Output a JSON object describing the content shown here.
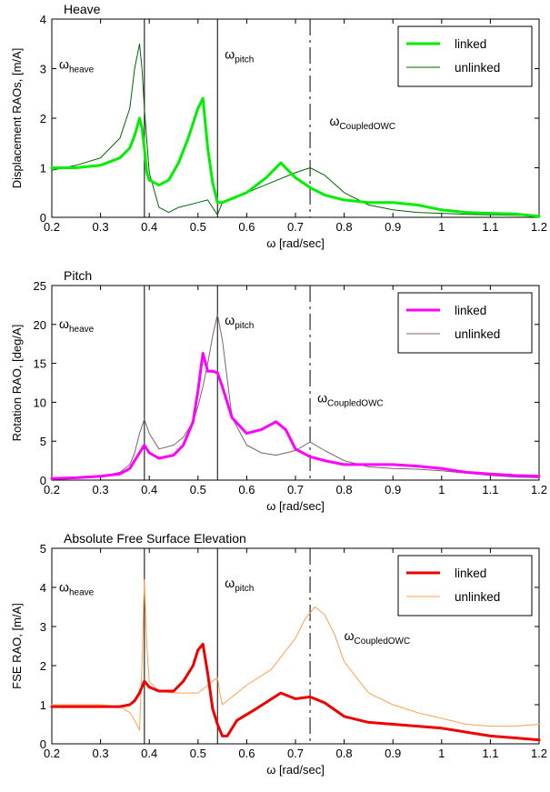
{
  "chart_data": [
    {
      "type": "line",
      "title": "Heave",
      "xlabel": "ω [rad/sec]",
      "ylabel": "Displacement RAOs, [m/A]",
      "xlim": [
        0.2,
        1.2
      ],
      "ylim": [
        0,
        4
      ],
      "xticks": [
        "0.2",
        "0.3",
        "0.4",
        "0.5",
        "0.6",
        "0.7",
        "0.8",
        "0.9",
        "1",
        "1.1",
        "1.2"
      ],
      "yticks": [
        "0",
        "1",
        "2",
        "3",
        "4"
      ],
      "legend": "top-right",
      "annotations": [
        {
          "base": "ω",
          "sub": "heave",
          "x": 0.215,
          "y": 3.0
        },
        {
          "base": "ω",
          "sub": "pitch",
          "x": 0.555,
          "y": 3.2
        },
        {
          "base": "ω",
          "sub": "CoupledOWC",
          "x": 0.77,
          "y": 1.85
        }
      ],
      "vlines": [
        {
          "x": 0.39,
          "style": "solid"
        },
        {
          "x": 0.54,
          "style": "solid"
        },
        {
          "x": 0.73,
          "style": "dashdot"
        }
      ],
      "series": [
        {
          "name": "linked",
          "color": "#00ee00",
          "width": 3,
          "x": [
            0.2,
            0.25,
            0.3,
            0.34,
            0.36,
            0.37,
            0.38,
            0.385,
            0.39,
            0.395,
            0.4,
            0.42,
            0.44,
            0.46,
            0.48,
            0.5,
            0.51,
            0.52,
            0.53,
            0.54,
            0.55,
            0.6,
            0.64,
            0.67,
            0.7,
            0.73,
            0.76,
            0.8,
            0.85,
            0.9,
            0.95,
            1.0,
            1.05,
            1.1,
            1.15,
            1.2
          ],
          "y": [
            1.0,
            1.0,
            1.05,
            1.2,
            1.4,
            1.65,
            2.0,
            1.8,
            1.4,
            0.9,
            0.75,
            0.65,
            0.75,
            1.1,
            1.6,
            2.2,
            2.4,
            1.4,
            0.7,
            0.3,
            0.3,
            0.5,
            0.8,
            1.1,
            0.8,
            0.6,
            0.45,
            0.35,
            0.3,
            0.3,
            0.25,
            0.15,
            0.1,
            0.08,
            0.07,
            0.02
          ]
        },
        {
          "name": "unlinked",
          "color": "#006600",
          "width": 1,
          "x": [
            0.2,
            0.25,
            0.3,
            0.34,
            0.36,
            0.37,
            0.38,
            0.385,
            0.39,
            0.4,
            0.42,
            0.44,
            0.46,
            0.5,
            0.52,
            0.53,
            0.54,
            0.55,
            0.6,
            0.65,
            0.7,
            0.73,
            0.76,
            0.8,
            0.85,
            0.9,
            0.95,
            1.0,
            1.05,
            1.1,
            1.15,
            1.2
          ],
          "y": [
            0.95,
            1.05,
            1.2,
            1.6,
            2.2,
            3.0,
            3.5,
            3.0,
            2.2,
            0.9,
            0.2,
            0.1,
            0.2,
            0.3,
            0.35,
            0.2,
            0.05,
            0.3,
            0.5,
            0.7,
            0.9,
            1.0,
            0.85,
            0.5,
            0.25,
            0.15,
            0.1,
            0.08,
            0.06,
            0.05,
            0.04,
            0.03
          ]
        }
      ]
    },
    {
      "type": "line",
      "title": "Pitch",
      "xlabel": "ω [rad/sec]",
      "ylabel": "Rotation RAO, [deg/A]",
      "xlim": [
        0.2,
        1.2
      ],
      "ylim": [
        0,
        25
      ],
      "xticks": [
        "0.2",
        "0.3",
        "0.4",
        "0.5",
        "0.6",
        "0.7",
        "0.8",
        "0.9",
        "1",
        "1.1",
        "1.2"
      ],
      "yticks": [
        "0",
        "5",
        "10",
        "15",
        "20",
        "25"
      ],
      "legend": "top-right",
      "annotations": [
        {
          "base": "ω",
          "sub": "heave",
          "x": 0.215,
          "y": 19.5
        },
        {
          "base": "ω",
          "sub": "pitch",
          "x": 0.555,
          "y": 20.0
        },
        {
          "base": "ω",
          "sub": "CoupledOWC",
          "x": 0.745,
          "y": 10.0
        }
      ],
      "vlines": [
        {
          "x": 0.39,
          "style": "solid"
        },
        {
          "x": 0.54,
          "style": "solid"
        },
        {
          "x": 0.73,
          "style": "dashdot"
        }
      ],
      "series": [
        {
          "name": "linked",
          "color": "#ff00ff",
          "width": 3,
          "x": [
            0.2,
            0.25,
            0.3,
            0.34,
            0.36,
            0.37,
            0.38,
            0.39,
            0.4,
            0.42,
            0.45,
            0.47,
            0.49,
            0.5,
            0.51,
            0.52,
            0.53,
            0.54,
            0.55,
            0.57,
            0.6,
            0.63,
            0.66,
            0.68,
            0.7,
            0.73,
            0.76,
            0.8,
            0.85,
            0.9,
            0.95,
            1.0,
            1.05,
            1.1,
            1.15,
            1.2
          ],
          "y": [
            0.2,
            0.3,
            0.5,
            0.8,
            1.5,
            2.5,
            3.5,
            4.5,
            3.5,
            2.8,
            3.2,
            4.5,
            7.5,
            11.5,
            16.3,
            14.0,
            14.0,
            13.8,
            12.0,
            8.0,
            6.0,
            6.5,
            7.5,
            6.5,
            4.0,
            3.0,
            2.5,
            2.0,
            2.0,
            2.0,
            1.8,
            1.5,
            1.0,
            0.8,
            0.6,
            0.5
          ]
        },
        {
          "name": "unlinked",
          "color": "#806070",
          "width": 1,
          "x": [
            0.2,
            0.25,
            0.3,
            0.34,
            0.36,
            0.37,
            0.38,
            0.39,
            0.4,
            0.42,
            0.45,
            0.47,
            0.49,
            0.5,
            0.51,
            0.52,
            0.53,
            0.54,
            0.55,
            0.57,
            0.6,
            0.63,
            0.66,
            0.7,
            0.73,
            0.76,
            0.8,
            0.85,
            0.9,
            0.95,
            1.0,
            1.05,
            1.1,
            1.15,
            1.2
          ],
          "y": [
            0.1,
            0.2,
            0.5,
            1.0,
            2.0,
            3.5,
            6.0,
            7.8,
            6.0,
            4.0,
            4.5,
            5.5,
            7.5,
            9.5,
            12.0,
            15.0,
            18.5,
            21.3,
            18.0,
            8.0,
            4.5,
            3.5,
            3.2,
            3.8,
            4.9,
            3.8,
            2.5,
            1.7,
            1.5,
            1.4,
            1.2,
            0.9,
            0.6,
            0.4,
            0.3
          ]
        }
      ]
    },
    {
      "type": "line",
      "title": "Absolute Free Surface Elevation",
      "xlabel": "ω [rad/sec]",
      "ylabel": "FSE RAO, [m/A]",
      "xlim": [
        0.2,
        1.2
      ],
      "ylim": [
        0,
        5
      ],
      "xticks": [
        "0.2",
        "0.3",
        "0.4",
        "0.5",
        "0.6",
        "0.7",
        "0.8",
        "0.9",
        "1",
        "1.1",
        "1.2"
      ],
      "yticks": [
        "0",
        "1",
        "2",
        "3",
        "4",
        "5"
      ],
      "legend": "top-right",
      "annotations": [
        {
          "base": "ω",
          "sub": "heave",
          "x": 0.215,
          "y": 3.9
        },
        {
          "base": "ω",
          "sub": "pitch",
          "x": 0.555,
          "y": 4.0
        },
        {
          "base": "ω",
          "sub": "CoupledOWC",
          "x": 0.8,
          "y": 2.65
        }
      ],
      "vlines": [
        {
          "x": 0.39,
          "style": "solid"
        },
        {
          "x": 0.54,
          "style": "solid"
        },
        {
          "x": 0.73,
          "style": "dashdot"
        }
      ],
      "series": [
        {
          "name": "linked",
          "color": "#ee0000",
          "width": 3,
          "x": [
            0.2,
            0.25,
            0.3,
            0.34,
            0.36,
            0.37,
            0.38,
            0.39,
            0.4,
            0.42,
            0.45,
            0.47,
            0.49,
            0.5,
            0.51,
            0.52,
            0.53,
            0.54,
            0.55,
            0.56,
            0.58,
            0.62,
            0.67,
            0.7,
            0.73,
            0.76,
            0.8,
            0.85,
            0.9,
            0.95,
            1.0,
            1.05,
            1.1,
            1.15,
            1.2
          ],
          "y": [
            0.95,
            0.95,
            0.95,
            0.95,
            1.0,
            1.1,
            1.3,
            1.6,
            1.45,
            1.35,
            1.35,
            1.6,
            2.0,
            2.4,
            2.55,
            1.8,
            0.9,
            0.5,
            0.2,
            0.2,
            0.6,
            0.9,
            1.3,
            1.15,
            1.2,
            1.05,
            0.7,
            0.55,
            0.5,
            0.45,
            0.4,
            0.3,
            0.2,
            0.15,
            0.1
          ]
        },
        {
          "name": "unlinked",
          "color": "#ffa050",
          "width": 1,
          "x": [
            0.2,
            0.25,
            0.3,
            0.34,
            0.36,
            0.37,
            0.38,
            0.385,
            0.39,
            0.395,
            0.4,
            0.42,
            0.45,
            0.5,
            0.53,
            0.54,
            0.545,
            0.55,
            0.6,
            0.65,
            0.7,
            0.72,
            0.74,
            0.76,
            0.78,
            0.8,
            0.85,
            0.9,
            0.95,
            1.0,
            1.05,
            1.1,
            1.15,
            1.2
          ],
          "y": [
            1.0,
            1.0,
            1.0,
            0.95,
            0.8,
            0.6,
            0.35,
            2.0,
            4.2,
            2.5,
            1.6,
            1.35,
            1.3,
            1.3,
            1.6,
            1.7,
            1.3,
            1.0,
            1.5,
            1.9,
            2.7,
            3.2,
            3.5,
            3.3,
            2.8,
            2.1,
            1.3,
            1.0,
            0.8,
            0.65,
            0.5,
            0.45,
            0.45,
            0.5
          ]
        }
      ]
    }
  ]
}
